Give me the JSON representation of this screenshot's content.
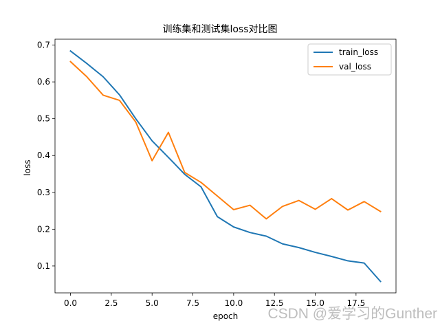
{
  "chart_data": {
    "type": "line",
    "title": "训练集和测试集loss对比图",
    "xlabel": "epoch",
    "ylabel": "loss",
    "xlim": [
      -0.95,
      19.95
    ],
    "ylim": [
      0.027,
      0.716
    ],
    "x": [
      0,
      1,
      2,
      3,
      4,
      5,
      6,
      7,
      8,
      9,
      10,
      11,
      12,
      13,
      14,
      15,
      16,
      17,
      18,
      19
    ],
    "x_ticks": [
      0.0,
      2.5,
      5.0,
      7.5,
      10.0,
      12.5,
      15.0,
      17.5
    ],
    "x_tick_labels": [
      "0.0",
      "2.5",
      "5.0",
      "7.5",
      "10.0",
      "12.5",
      "15.0",
      "17.5"
    ],
    "y_ticks": [
      0.1,
      0.2,
      0.3,
      0.4,
      0.5,
      0.6,
      0.7
    ],
    "y_tick_labels": [
      "0.1",
      "0.2",
      "0.3",
      "0.4",
      "0.5",
      "0.6",
      "0.7"
    ],
    "legend_position": "top-right",
    "series": [
      {
        "name": "train_loss",
        "color": "#1f77b4",
        "values": [
          0.684,
          0.65,
          0.614,
          0.565,
          0.5,
          0.44,
          0.395,
          0.349,
          0.315,
          0.234,
          0.206,
          0.191,
          0.181,
          0.16,
          0.15,
          0.137,
          0.126,
          0.114,
          0.108,
          0.058
        ]
      },
      {
        "name": "val_loss",
        "color": "#ff7f0e",
        "values": [
          0.655,
          0.614,
          0.564,
          0.55,
          0.491,
          0.386,
          0.463,
          0.354,
          0.327,
          0.29,
          0.253,
          0.265,
          0.228,
          0.262,
          0.278,
          0.254,
          0.283,
          0.252,
          0.275,
          0.248
        ]
      }
    ]
  },
  "watermark": "CSDN @爱学习的Gunther"
}
